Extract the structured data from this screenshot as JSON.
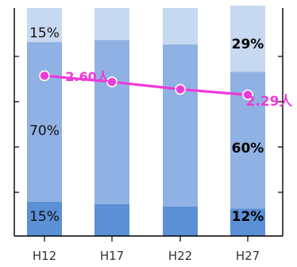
{
  "chart_data": {
    "type": "bar",
    "stacked": true,
    "percent_stacked": true,
    "categories": [
      "H12",
      "H17",
      "H22",
      "H27"
    ],
    "series": [
      {
        "values": [
          15,
          14,
          13,
          12
        ],
        "color": "#5b8fd6"
      },
      {
        "values": [
          70,
          72,
          71,
          60
        ],
        "color": "#8fb1e3"
      },
      {
        "values": [
          15,
          14,
          16,
          29
        ],
        "color": "#c7d8f1"
      }
    ],
    "line_series": {
      "values": [
        2.6,
        2.5,
        2.38,
        2.29
      ],
      "color": "#ee3ad8"
    },
    "bar_labels": [
      [
        {
          "text": "15%",
          "color": "#111111"
        },
        {
          "text": "70%",
          "color": "#111111"
        },
        {
          "text": "15%",
          "color": "#111111"
        }
      ],
      [],
      [],
      [
        {
          "text": "12%",
          "color": "#000000"
        },
        {
          "text": "60%",
          "color": "#000000"
        },
        {
          "text": "29%",
          "color": "#000000"
        }
      ]
    ],
    "line_labels": [
      {
        "text": "2.60人",
        "color": "#ee3ad8"
      },
      {
        "text": "2.29人",
        "color": "#ee3ad8"
      }
    ],
    "ylim_percent": [
      0,
      100
    ],
    "line_ylim": [
      0,
      3.7
    ],
    "grid": false,
    "legend": false
  }
}
